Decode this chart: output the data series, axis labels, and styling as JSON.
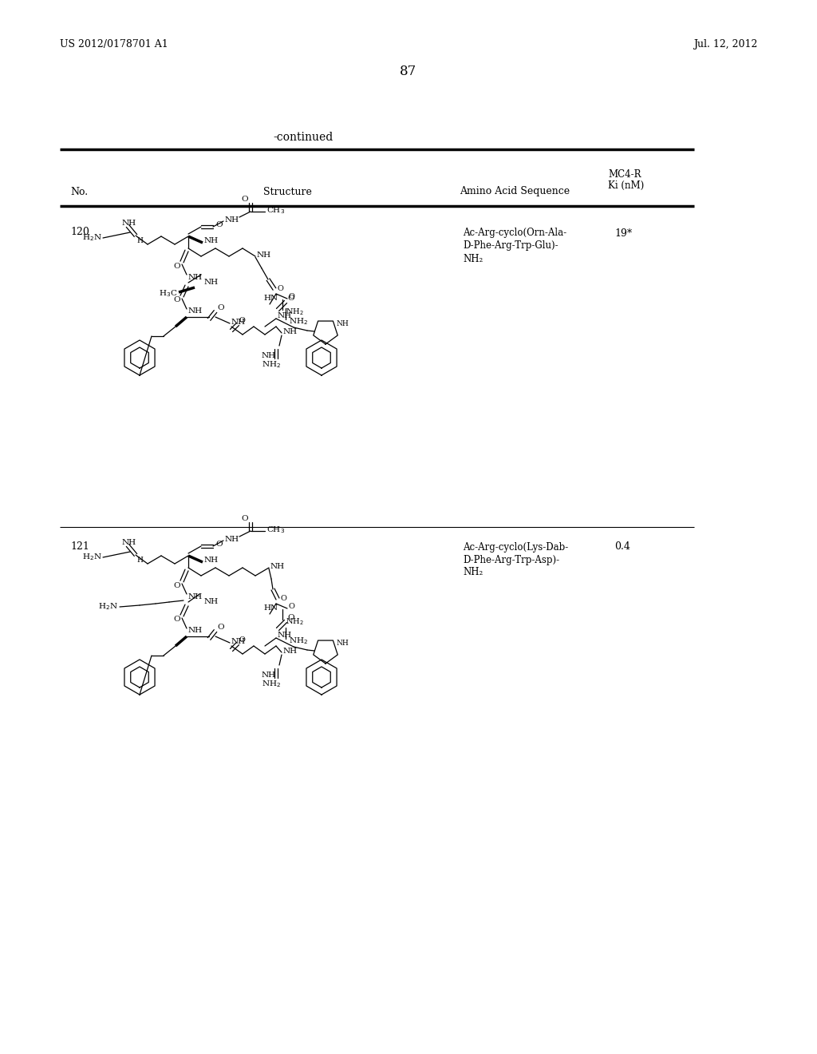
{
  "page_header_left": "US 2012/0178701 A1",
  "page_header_right": "Jul. 12, 2012",
  "page_number": "87",
  "continued_text": "-continued",
  "col1_header": "No.",
  "col2_header": "Structure",
  "col3_header": "Amino Acid Sequence",
  "col4_header_line1": "MC4-R",
  "col4_header_line2": "Ki (nM)",
  "entry1_no": "120",
  "entry1_seq_line1": "Ac-Arg-cyclo(Orn-Ala-",
  "entry1_seq_line2": "D-Phe-Arg-Trp-Glu)-",
  "entry1_seq_line3": "NH₂",
  "entry1_ki": "19*",
  "entry2_no": "121",
  "entry2_seq_line1": "Ac-Arg-cyclo(Lys-Dab-",
  "entry2_seq_line2": "D-Phe-Arg-Trp-Asp)-",
  "entry2_seq_line3": "NH₂",
  "entry2_ki": "0.4",
  "bg_color": "#ffffff",
  "text_color": "#000000",
  "line_color": "#000000"
}
